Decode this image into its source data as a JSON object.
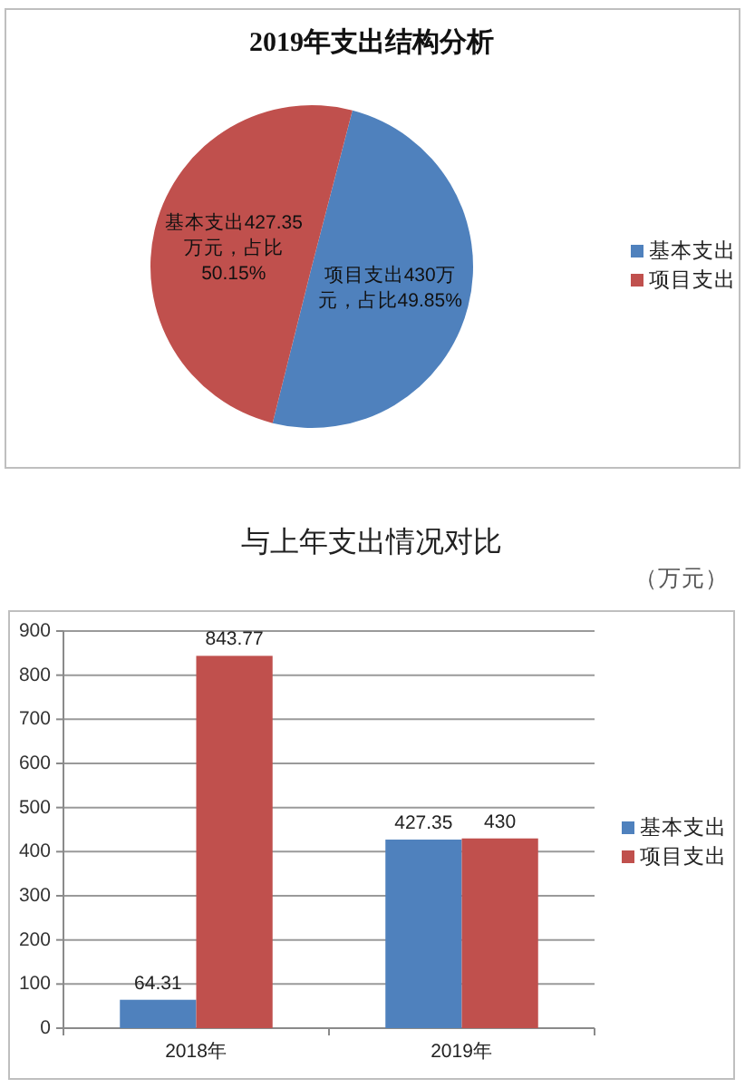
{
  "chart_data": [
    {
      "type": "pie",
      "title": "2019年支出结构分析",
      "categories": [
        "基本支出",
        "项目支出"
      ],
      "values": [
        49.85,
        50.15
      ],
      "colors": [
        "#4f81bd",
        "#c0504d"
      ],
      "value_labels": [
        "项目支出430万元，占比49.85%",
        "基本支出427.35万元，占比50.15%"
      ],
      "legend": "right"
    },
    {
      "type": "bar",
      "title": "与上年支出情况对比",
      "ylabel": "（万元）",
      "categories": [
        "2018年",
        "2019年"
      ],
      "series": [
        {
          "name": "基本支出",
          "color": "#4f81bd",
          "values": [
            64.31,
            427.35
          ]
        },
        {
          "name": "项目支出",
          "color": "#c0504d",
          "values": [
            843.77,
            430
          ]
        }
      ],
      "ylim": [
        0,
        900
      ],
      "yticks": [
        0,
        100,
        200,
        300,
        400,
        500,
        600,
        700,
        800,
        900
      ],
      "grid": "y",
      "legend": "right",
      "data_labels": true
    }
  ]
}
